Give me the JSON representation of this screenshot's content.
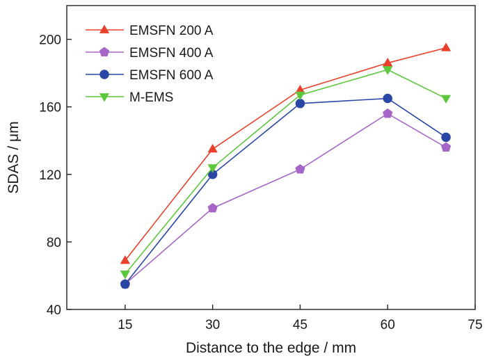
{
  "chart_data": {
    "type": "line",
    "title": "",
    "xlabel": "Distance to the edge / mm",
    "ylabel": "SDAS / μm",
    "xlim": [
      5,
      75
    ],
    "ylim": [
      40,
      220
    ],
    "xticks": [
      15,
      30,
      45,
      60,
      75
    ],
    "yticks": [
      40,
      80,
      120,
      160,
      200
    ],
    "x": [
      15,
      30,
      45,
      60,
      70
    ],
    "grid": false,
    "legend_position": "top-left",
    "series": [
      {
        "name": "EMSFN 200 A",
        "color": "#e8402a",
        "marker": "triangle-up",
        "values": [
          69,
          135,
          170,
          186,
          195
        ]
      },
      {
        "name": "EMSFN 400 A",
        "color": "#a566c8",
        "marker": "pentagon",
        "values": [
          55,
          100,
          123,
          156,
          136
        ]
      },
      {
        "name": "EMSFN 600 A",
        "color": "#2b47a6",
        "marker": "circle",
        "values": [
          55,
          120,
          162,
          165,
          142
        ]
      },
      {
        "name": "M-EMS",
        "color": "#5cc83c",
        "marker": "triangle-down",
        "values": [
          61,
          124,
          167,
          182,
          165
        ]
      }
    ]
  }
}
